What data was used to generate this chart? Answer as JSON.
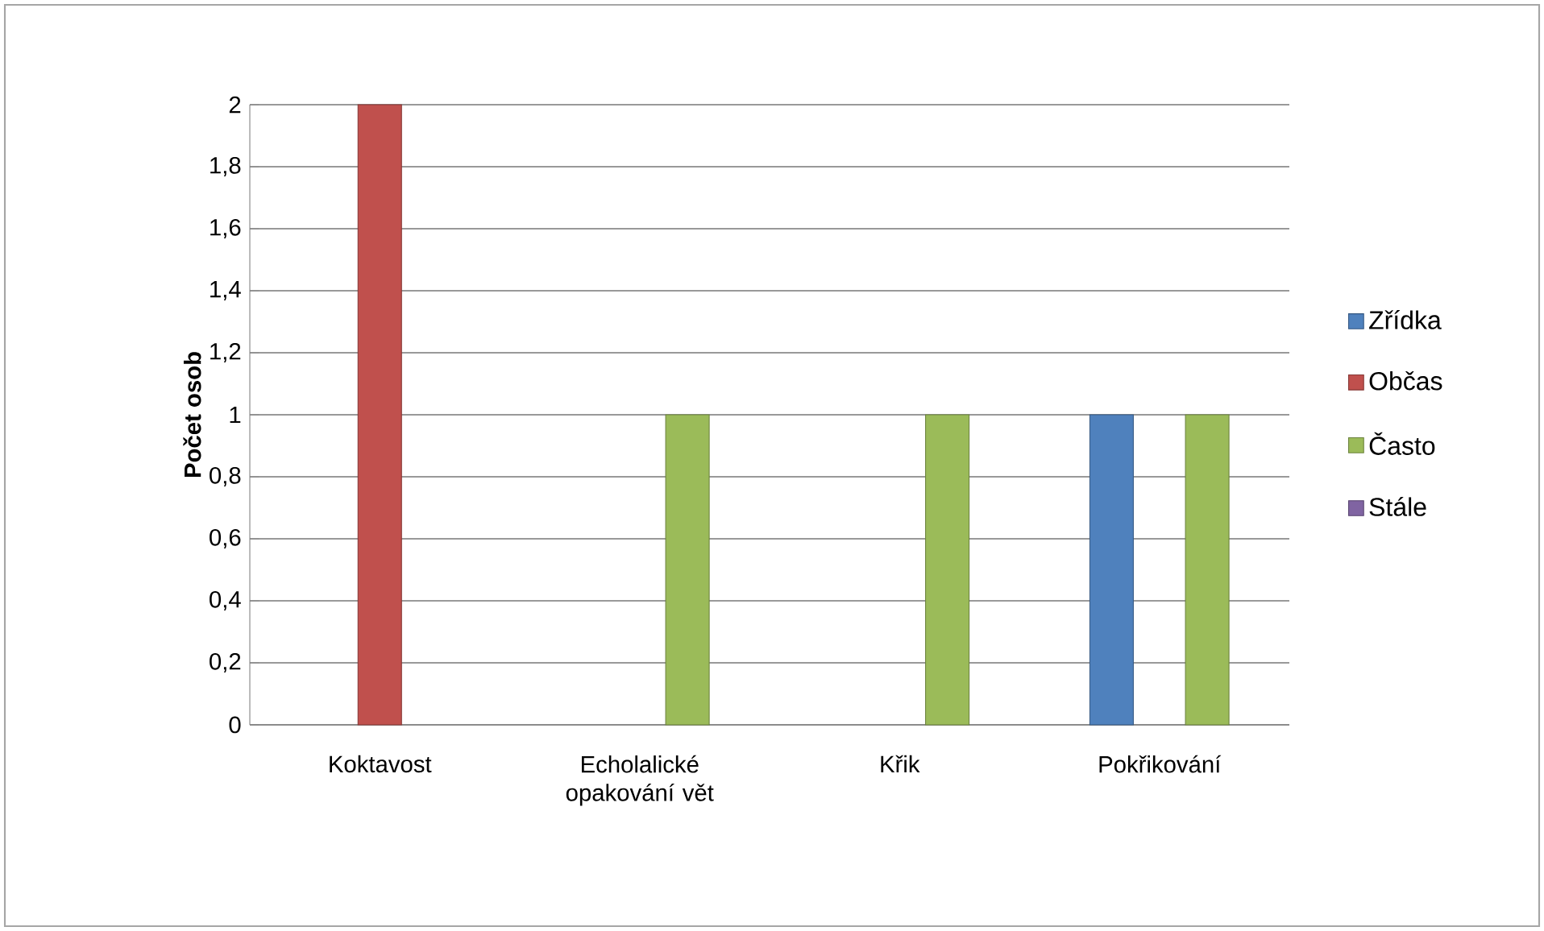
{
  "chart_data": {
    "type": "bar",
    "ylabel": "Počet osob",
    "categories": [
      "Koktavost",
      "Echolalické opakování vět",
      "Křik",
      "Pokřikování"
    ],
    "series": [
      {
        "name": "Zřídka",
        "color": "#4f81bd",
        "values": [
          null,
          null,
          null,
          1
        ]
      },
      {
        "name": "Občas",
        "color": "#c0504d",
        "values": [
          2,
          null,
          null,
          null
        ]
      },
      {
        "name": "Často",
        "color": "#9bbb59",
        "values": [
          null,
          1,
          1,
          1
        ]
      },
      {
        "name": "Stále",
        "color": "#8064a2",
        "values": [
          null,
          null,
          null,
          null
        ]
      }
    ],
    "ylim": [
      0,
      2
    ],
    "yticks": [
      0,
      {
        "value": 0.2,
        "label": "0,2"
      },
      {
        "value": 0.4,
        "label": "0,4"
      },
      {
        "value": 0.6,
        "label": "0,6"
      },
      {
        "value": 0.8,
        "label": "0,8"
      },
      1,
      {
        "value": 1.2,
        "label": "1,2"
      },
      {
        "value": 1.4,
        "label": "1,4"
      },
      {
        "value": 1.6,
        "label": "1,6"
      },
      {
        "value": 1.8,
        "label": "1,8"
      },
      2
    ],
    "grid": "y",
    "legend": "right"
  }
}
